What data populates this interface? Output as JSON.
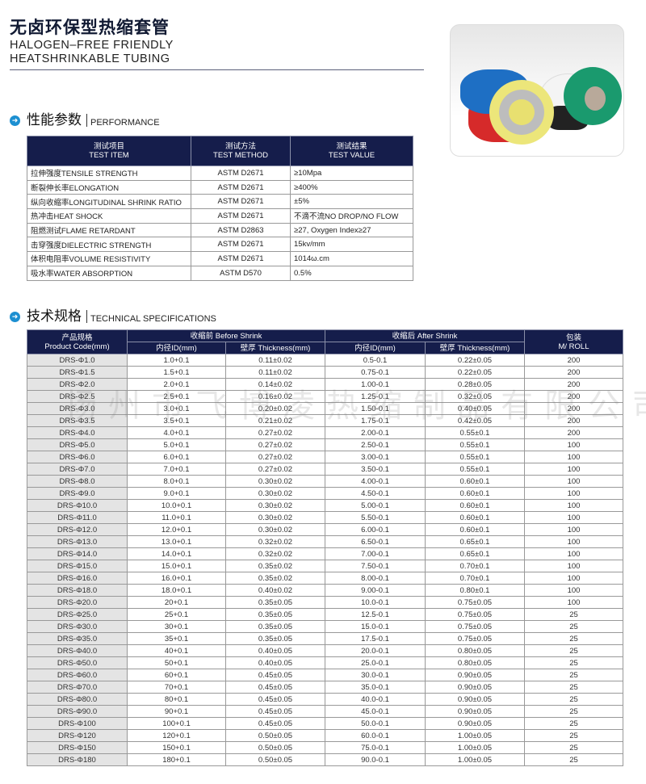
{
  "header": {
    "title_cn": "无卤环保型热缩套管",
    "title_en_1": "HALOGEN–FREE FRIENDLY",
    "title_en_2": "HEATSHRINKABLE TUBING"
  },
  "performance": {
    "heading_cn": "性能参数",
    "heading_en": "PERFORMANCE",
    "columns": [
      {
        "cn": "测试项目",
        "en": "TEST ITEM"
      },
      {
        "cn": "测试方法",
        "en": "TEST METHOD"
      },
      {
        "cn": "测试结果",
        "en": "TEST VALUE"
      }
    ],
    "rows": [
      [
        "拉伸强度TENSILE STRENGTH",
        "ASTM D2671",
        "≥10Mpa"
      ],
      [
        "断裂伸长率ELONGATION",
        "ASTM D2671",
        "≥400%"
      ],
      [
        "纵向收缩率LONGITUDINAL SHRINK RATIO",
        "ASTM D2671",
        "±5%"
      ],
      [
        "热冲击HEAT SHOCK",
        "ASTM D2671",
        "不滴不流NO DROP/NO FLOW"
      ],
      [
        "阻燃测试FLAME RETARDANT",
        "ASTM D2863",
        "≥27, Oxygen Index≥27"
      ],
      [
        "击穿强度DIELECTRIC STRENGTH",
        "ASTM D2671",
        "15kv/mm"
      ],
      [
        "体积电阻率VOLUME RESISTIVITY",
        "ASTM D2671",
        "1014ω.cm"
      ],
      [
        "吸水率WATER ABSORPTION",
        "ASTM D570",
        "0.5%"
      ]
    ]
  },
  "specs": {
    "heading_cn": "技术规格",
    "heading_en": "TECHNICAL SPECIFICATIONS",
    "header": {
      "code_cn": "产品规格",
      "code_en": "Product Code(mm)",
      "before": "收缩前 Before Shrink",
      "after": "收缩后 After Shrink",
      "roll_cn": "包装",
      "roll_en": "M/ ROLL",
      "id": "内径ID(mm)",
      "thickness": "壁厚 Thickness(mm)"
    },
    "rows": [
      [
        "DRS-Φ1.0",
        "1.0+0.1",
        "0.11±0.02",
        "0.5-0.1",
        "0.22±0.05",
        "200"
      ],
      [
        "DRS-Φ1.5",
        "1.5+0.1",
        "0.11±0.02",
        "0.75-0.1",
        "0.22±0.05",
        "200"
      ],
      [
        "DRS-Φ2.0",
        "2.0+0.1",
        "0.14±0.02",
        "1.00-0.1",
        "0.28±0.05",
        "200"
      ],
      [
        "DRS-Φ2.5",
        "2.5+0.1",
        "0.16±0.02",
        "1.25-0.1",
        "0.32±0.05",
        "200"
      ],
      [
        "DRS-Φ3.0",
        "3.0+0.1",
        "0.20±0.02",
        "1.50-0.1",
        "0.40±0.05",
        "200"
      ],
      [
        "DRS-Φ3.5",
        "3.5+0.1",
        "0.21±0.02",
        "1.75-0.1",
        "0.42±0.05",
        "200"
      ],
      [
        "DRS-Φ4.0",
        "4.0+0.1",
        "0.27±0.02",
        "2.00-0.1",
        "0.55±0.1",
        "200"
      ],
      [
        "DRS-Φ5.0",
        "5.0+0.1",
        "0.27±0.02",
        "2.50-0.1",
        "0.55±0.1",
        "100"
      ],
      [
        "DRS-Φ6.0",
        "6.0+0.1",
        "0.27±0.02",
        "3.00-0.1",
        "0.55±0.1",
        "100"
      ],
      [
        "DRS-Φ7.0",
        "7.0+0.1",
        "0.27±0.02",
        "3.50-0.1",
        "0.55±0.1",
        "100"
      ],
      [
        "DRS-Φ8.0",
        "8.0+0.1",
        "0.30±0.02",
        "4.00-0.1",
        "0.60±0.1",
        "100"
      ],
      [
        "DRS-Φ9.0",
        "9.0+0.1",
        "0.30±0.02",
        "4.50-0.1",
        "0.60±0.1",
        "100"
      ],
      [
        "DRS-Φ10.0",
        "10.0+0.1",
        "0.30±0.02",
        "5.00-0.1",
        "0.60±0.1",
        "100"
      ],
      [
        "DRS-Φ11.0",
        "11.0+0.1",
        "0.30±0.02",
        "5.50-0.1",
        "0.60±0.1",
        "100"
      ],
      [
        "DRS-Φ12.0",
        "12.0+0.1",
        "0.30±0.02",
        "6.00-0.1",
        "0.60±0.1",
        "100"
      ],
      [
        "DRS-Φ13.0",
        "13.0+0.1",
        "0.32±0.02",
        "6.50-0.1",
        "0.65±0.1",
        "100"
      ],
      [
        "DRS-Φ14.0",
        "14.0+0.1",
        "0.32±0.02",
        "7.00-0.1",
        "0.65±0.1",
        "100"
      ],
      [
        "DRS-Φ15.0",
        "15.0+0.1",
        "0.35±0.02",
        "7.50-0.1",
        "0.70±0.1",
        "100"
      ],
      [
        "DRS-Φ16.0",
        "16.0+0.1",
        "0.35±0.02",
        "8.00-0.1",
        "0.70±0.1",
        "100"
      ],
      [
        "DRS-Φ18.0",
        "18.0+0.1",
        "0.40±0.02",
        "9.00-0.1",
        "0.80±0.1",
        "100"
      ],
      [
        "DRS-Φ20.0",
        "20+0.1",
        "0.35±0.05",
        "10.0-0.1",
        "0.75±0.05",
        "100"
      ],
      [
        "DRS-Φ25.0",
        "25+0.1",
        "0.35±0.05",
        "12.5-0.1",
        "0.75±0.05",
        "25"
      ],
      [
        "DRS-Φ30.0",
        "30+0.1",
        "0.35±0.05",
        "15.0-0.1",
        "0.75±0.05",
        "25"
      ],
      [
        "DRS-Φ35.0",
        "35+0.1",
        "0.35±0.05",
        "17.5-0.1",
        "0.75±0.05",
        "25"
      ],
      [
        "DRS-Φ40.0",
        "40+0.1",
        "0.40±0.05",
        "20.0-0.1",
        "0.80±0.05",
        "25"
      ],
      [
        "DRS-Φ50.0",
        "50+0.1",
        "0.40±0.05",
        "25.0-0.1",
        "0.80±0.05",
        "25"
      ],
      [
        "DRS-Φ60.0",
        "60+0.1",
        "0.45±0.05",
        "30.0-0.1",
        "0.90±0.05",
        "25"
      ],
      [
        "DRS-Φ70.0",
        "70+0.1",
        "0.45±0.05",
        "35.0-0.1",
        "0.90±0.05",
        "25"
      ],
      [
        "DRS-Φ80.0",
        "80+0.1",
        "0.45±0.05",
        "40.0-0.1",
        "0.90±0.05",
        "25"
      ],
      [
        "DRS-Φ90.0",
        "90+0.1",
        "0.45±0.05",
        "45.0-0.1",
        "0.90±0.05",
        "25"
      ],
      [
        "DRS-Φ100",
        "100+0.1",
        "0.45±0.05",
        "50.0-0.1",
        "0.90±0.05",
        "25"
      ],
      [
        "DRS-Φ120",
        "120+0.1",
        "0.50±0.05",
        "60.0-0.1",
        "1.00±0.05",
        "25"
      ],
      [
        "DRS-Φ150",
        "150+0.1",
        "0.50±0.05",
        "75.0-0.1",
        "1.00±0.05",
        "25"
      ],
      [
        "DRS-Φ180",
        "180+0.1",
        "0.50±0.05",
        "90.0-0.1",
        "1.00±0.05",
        "25"
      ]
    ]
  },
  "watermark": "扬州市飞博凌热缩制品有限公司",
  "colors": {
    "header_bg": "#151d4b",
    "bullet": "#1c8fd1",
    "code_cell_bg": "#e4e4e4"
  }
}
